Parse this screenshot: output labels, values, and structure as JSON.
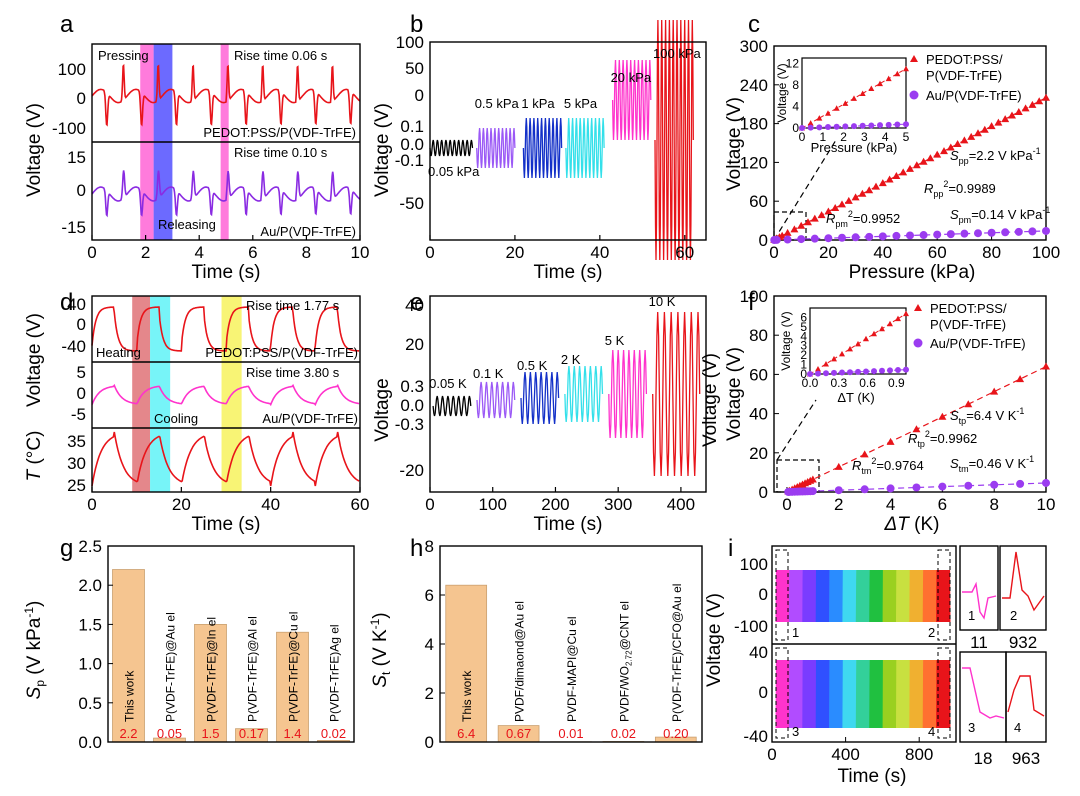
{
  "chart_data": [
    {
      "id": "a",
      "type": "line",
      "panel_label": "a",
      "xlabel": "Time (s)",
      "ylabel": "Voltage (V)",
      "xlim": [
        0,
        10
      ],
      "x_ticks": [
        "0",
        "2",
        "4",
        "6",
        "8",
        "10"
      ],
      "top": {
        "ylim": [
          -140,
          150
        ],
        "y_ticks": [
          "100",
          "0",
          "-100"
        ],
        "series_name": "PEDOT:PSS/P(VDF-TrFE)",
        "color": "#e8141a",
        "annotation": "Rise time 0.06 s",
        "label_left": "Pressing"
      },
      "bottom": {
        "ylim": [
          -20,
          20
        ],
        "y_ticks": [
          "15",
          "0",
          "-15"
        ],
        "series_name": "Au/P(VDF-TrFE)",
        "color": "#8a2be2",
        "annotation": "Rise time 0.10 s",
        "label_center": "Releasing"
      },
      "highlight_colors": [
        "#ff4fd0",
        "#3b38ff",
        "#ff4fd0"
      ]
    },
    {
      "id": "b",
      "type": "line",
      "panel_label": "b",
      "xlabel": "Time (s)",
      "ylabel": "Voltage (V)",
      "xlim": [
        0,
        65
      ],
      "x_ticks": [
        "0",
        "20",
        "40",
        "60"
      ],
      "y_ticks_lower": [
        "0.1",
        "0.0",
        "-0.1"
      ],
      "y_ticks_upper": [
        "-50",
        "0",
        "50",
        "100"
      ],
      "segments": [
        {
          "label": "0.05 kPa",
          "color": "#000000",
          "t": [
            0,
            10
          ]
        },
        {
          "label": "0.5 kPa",
          "color": "#9b59f6",
          "t": [
            11,
            20
          ]
        },
        {
          "label": "1 kPa",
          "color": "#1330c8",
          "t": [
            22,
            31
          ]
        },
        {
          "label": "5 kPa",
          "color": "#34e0ea",
          "t": [
            32,
            41
          ]
        },
        {
          "label": "20 kPa",
          "color": "#ff33cc",
          "t": [
            43,
            52
          ]
        },
        {
          "label": "100 kPa",
          "color": "#e8141a",
          "t": [
            53,
            62
          ]
        }
      ]
    },
    {
      "id": "c",
      "type": "scatter",
      "panel_label": "c",
      "xlabel": "Pressure (kPa)",
      "ylabel": "Voltage (V)",
      "xlim": [
        0,
        100
      ],
      "ylim": [
        0,
        300
      ],
      "x_ticks": [
        "0",
        "20",
        "40",
        "60",
        "80",
        "100"
      ],
      "y_ticks": [
        "0",
        "60",
        "120",
        "180",
        "240",
        "300"
      ],
      "series": [
        {
          "name": "PEDOT:PSS/\nP(VDF-TrFE)",
          "legend_1": "PEDOT:PSS/",
          "legend_2": "P(VDF-TrFE)",
          "color": "#e8141a",
          "marker": "triangle",
          "x": [
            0.1,
            0.5,
            1,
            2,
            3,
            5,
            7.5,
            10,
            12.5,
            15,
            17.5,
            20,
            22.5,
            25,
            27.5,
            30,
            32.5,
            35,
            37.5,
            40,
            42.5,
            45,
            47.5,
            50,
            52.5,
            55,
            57.5,
            60,
            62.5,
            65,
            67.5,
            70,
            72.5,
            75,
            77.5,
            80,
            82.5,
            85,
            87.5,
            90,
            92.5,
            95,
            97.5,
            100
          ],
          "slope": 2.2
        },
        {
          "name": "Au/P(VDF-TrFE)",
          "color": "#9b3cf0",
          "marker": "circle",
          "slope": 0.14,
          "x": [
            0.1,
            1,
            5,
            10,
            15,
            20,
            25,
            30,
            35,
            40,
            45,
            50,
            55,
            60,
            65,
            70,
            75,
            80,
            85,
            90,
            95,
            100
          ]
        }
      ],
      "annotations": {
        "s_pp_main": "S",
        "s_pp_sub": "pp",
        "s_pp_val": "=2.2 V kPa",
        "s_pp_sup": "-1",
        "r_pp_main": "R",
        "r_pp_sub": "pp",
        "r_pp_sup": "2",
        "r_pp_val": "=0.9989",
        "r_pm_main": "R",
        "r_pm_sub": "pm",
        "r_pm_sup": "2",
        "r_pm_val": "=0.9952",
        "s_pm_main": "S",
        "s_pm_sub": "pm",
        "s_pm_val": "=0.14 V kPa",
        "s_pm_sup": "-1"
      },
      "inset": {
        "xlabel": "Pressure (kPa)",
        "ylabel": "Voltage (V)",
        "x_ticks": [
          "0",
          "1",
          "2",
          "3",
          "4",
          "5"
        ],
        "y_ticks": [
          "0",
          "4",
          "8",
          "12"
        ],
        "xlim": [
          0,
          5
        ],
        "ylim": [
          0,
          13
        ]
      }
    },
    {
      "id": "d",
      "type": "line",
      "panel_label": "d",
      "xlabel": "Time (s)",
      "ylabel_top": "Voltage (V)",
      "ylabel_bottom_it": "T",
      "ylabel_bottom": " (°C)",
      "x_ticks": [
        "0",
        "20",
        "40",
        "60"
      ],
      "xlim": [
        0,
        60
      ],
      "top": {
        "y_ticks": [
          "40",
          "0",
          "-40"
        ],
        "series_name": "PEDOT:PSS/P(VDF-TrFE)",
        "annotation": "Rise time 1.77 s",
        "label_left": "Heating",
        "color": "#e8141a"
      },
      "middle": {
        "y_ticks": [
          "5",
          "0",
          "-5"
        ],
        "series_name": "Au/P(VDF-TrFE)",
        "annotation": "Rise time 3.80 s",
        "label_center": "Cooling",
        "color": "#ff33cc"
      },
      "bottom": {
        "y_ticks": [
          "35",
          "30",
          "25"
        ],
        "color": "#e8141a"
      },
      "highlight_colors": [
        "#d9545a",
        "#3df0f5",
        "#f5f03a"
      ]
    },
    {
      "id": "e",
      "type": "line",
      "panel_label": "e",
      "xlabel": "Time (s)",
      "ylabel_left": "Voltage",
      "ylabel_right": "Voltage (V)",
      "xlim": [
        0,
        440
      ],
      "x_ticks": [
        "0",
        "100",
        "200",
        "300",
        "400"
      ],
      "y_ticks_lower": [
        "0.3",
        "0.0",
        "-0.3"
      ],
      "y_ticks_upper": [
        "40",
        "20",
        "-20"
      ],
      "segments": [
        {
          "label": "0.05 K",
          "color": "#000000",
          "t": [
            5,
            65
          ]
        },
        {
          "label": "0.1 K",
          "color": "#9b59f6",
          "t": [
            75,
            135
          ]
        },
        {
          "label": "0.5 K",
          "color": "#1330c8",
          "t": [
            145,
            205
          ]
        },
        {
          "label": "2 K",
          "color": "#34e0ea",
          "t": [
            215,
            275
          ]
        },
        {
          "label": "5 K",
          "color": "#ff33cc",
          "t": [
            285,
            345
          ]
        },
        {
          "label": "10 K",
          "color": "#e8141a",
          "t": [
            355,
            430
          ]
        }
      ]
    },
    {
      "id": "f",
      "type": "scatter",
      "panel_label": "f",
      "xlabel_it": "ΔT",
      "xlabel_unit": " (K)",
      "ylabel": "Voltage (V)",
      "xlim": [
        -0.5,
        10
      ],
      "ylim": [
        0,
        100
      ],
      "x_ticks": [
        "0",
        "2",
        "4",
        "6",
        "8",
        "10"
      ],
      "y_ticks": [
        "0",
        "20",
        "40",
        "60",
        "80",
        "100"
      ],
      "series": [
        {
          "legend_1": "PEDOT:PSS/",
          "legend_2": "P(VDF-TrFE)",
          "color": "#e8141a",
          "marker": "triangle",
          "slope": 6.4,
          "x": [
            0.05,
            0.1,
            0.2,
            0.3,
            0.4,
            0.5,
            0.6,
            0.7,
            0.8,
            0.9,
            1,
            2,
            3,
            4,
            5,
            6,
            7,
            8,
            9,
            10
          ]
        },
        {
          "name": "Au/P(VDF-TrFE)",
          "color": "#9b3cf0",
          "marker": "circle",
          "slope": 0.46,
          "x": [
            0.05,
            0.1,
            0.2,
            0.3,
            0.4,
            0.5,
            0.6,
            0.7,
            0.8,
            0.9,
            1,
            2,
            3,
            4,
            5,
            6,
            7,
            8,
            9,
            10
          ]
        }
      ],
      "annotations": {
        "s_tp_main": "S",
        "s_tp_sub": "tp",
        "s_tp_val": "=6.4 V K",
        "s_tp_sup": "-1",
        "r_tp_main": "R",
        "r_tp_sub": "tp",
        "r_tp_sup": "2",
        "r_tp_val": "=0.9962",
        "r_tm_main": "R",
        "r_tm_sub": "tm",
        "r_tm_sup": "2",
        "r_tm_val": "=0.9764",
        "s_tm_main": "S",
        "s_tm_sub": "tm",
        "s_tm_val": "=0.46 V K",
        "s_tm_sup": "-1"
      },
      "inset": {
        "xlabel_it": "ΔT",
        "xlabel_unit": " (K)",
        "ylabel": "Voltage (V)",
        "x_ticks": [
          "0.0",
          "0.3",
          "0.6",
          "0.9"
        ],
        "y_ticks": [
          "0",
          "1",
          "2",
          "3",
          "4",
          "5",
          "6"
        ],
        "xlim": [
          0,
          1
        ],
        "ylim": [
          0,
          7
        ]
      }
    },
    {
      "id": "g",
      "type": "bar",
      "panel_label": "g",
      "ylabel_it": "S",
      "ylabel_sub": "p",
      "ylabel_unit": " (V kPa",
      "ylabel_sup": "-1",
      "ylabel_end": ")",
      "ylim": [
        0,
        2.5
      ],
      "y_ticks": [
        "0.0",
        "0.5",
        "1.0",
        "1.5",
        "2.0",
        "2.5"
      ],
      "categories": [
        "This work",
        "P(VDF-TrFE)@Au el",
        "P(VDF-TrFE)@In el",
        "P(VDF-TrFE)@Al el",
        "P(VDF-TrFE)@Cu el",
        "P(VDF-TrFE)Ag el"
      ],
      "values": [
        2.2,
        0.05,
        1.5,
        0.17,
        1.4,
        0.02
      ],
      "value_labels": [
        "2.2",
        "0.05",
        "1.5",
        "0.17",
        "1.4",
        "0.02"
      ],
      "bar_color": "#f5c590"
    },
    {
      "id": "h",
      "type": "bar",
      "panel_label": "h",
      "ylabel_it": "S",
      "ylabel_sub": "t",
      "ylabel_unit": " (V K",
      "ylabel_sup": "-1",
      "ylabel_end": ")",
      "ylim": [
        0,
        8
      ],
      "y_ticks": [
        "0",
        "2",
        "4",
        "6",
        "8"
      ],
      "categories": [
        "This work",
        "PVDF/dimaond@Au el",
        "PVDF-MAPI@Cu el",
        "PVDF/WO2.72@CNT el",
        "P(VDF-TrFE)/CFO@Au el"
      ],
      "category_parts": [
        [
          "This work"
        ],
        [
          "PVDF/dimaond@Au el"
        ],
        [
          "PVDF-MAPI@Cu el"
        ],
        [
          "PVDF/WO",
          "2.72",
          "@CNT el"
        ],
        [
          "P(VDF-TrFE)/CFO@Au el"
        ]
      ],
      "values": [
        6.4,
        0.67,
        0.01,
        0.02,
        0.2
      ],
      "value_labels": [
        "6.4",
        "0.67",
        "0.01",
        "0.02",
        "0.20"
      ],
      "bar_color": "#f5c590"
    },
    {
      "id": "i",
      "type": "line",
      "panel_label": "i",
      "xlabel": "Time (s)",
      "ylabel": "Voltage (V)",
      "xlim": [
        0,
        1000
      ],
      "x_ticks": [
        "0",
        "400",
        "800"
      ],
      "top": {
        "y_ticks": [
          "100",
          "0",
          "-100"
        ],
        "box_labels": [
          "1",
          "2"
        ]
      },
      "bottom": {
        "y_ticks": [
          "40",
          "0",
          "-40"
        ],
        "box_labels": [
          "3",
          "4"
        ]
      },
      "zoom_top": [
        {
          "label": "1",
          "time": "11"
        },
        {
          "label": "2",
          "time": "932"
        }
      ],
      "zoom_bottom": [
        {
          "label": "3",
          "time": "18"
        },
        {
          "label": "4",
          "time": "963"
        }
      ]
    }
  ]
}
